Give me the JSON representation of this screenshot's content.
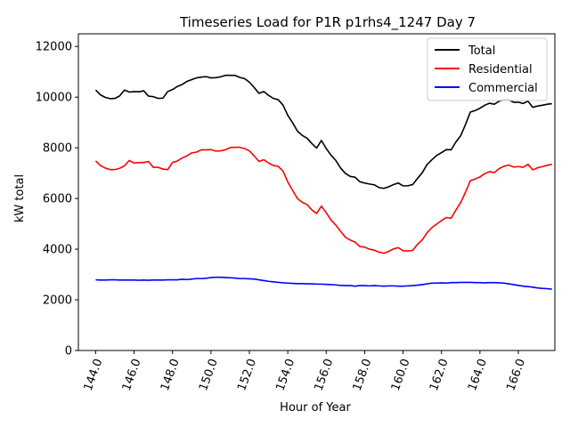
{
  "chart_data": {
    "type": "line",
    "title": "Timeseries Load for P1R p1rhs4_1247  Day 7",
    "xlabel": "Hour of Year",
    "ylabel": "kW total",
    "xlim": [
      143.1,
      167.9
    ],
    "ylim": [
      0,
      12500
    ],
    "xticks": [
      144,
      146,
      148,
      150,
      152,
      154,
      156,
      158,
      160,
      162,
      164,
      166
    ],
    "xtick_labels": [
      "144.0",
      "146.0",
      "148.0",
      "150.0",
      "152.0",
      "154.0",
      "156.0",
      "158.0",
      "160.0",
      "162.0",
      "164.0",
      "166.0"
    ],
    "yticks": [
      0,
      2000,
      4000,
      6000,
      8000,
      10000,
      12000
    ],
    "ytick_labels": [
      "0",
      "2000",
      "4000",
      "6000",
      "8000",
      "10000",
      "12000"
    ],
    "grid": false,
    "legend_position": "top-right",
    "x": [
      144.0,
      144.25,
      144.5,
      144.75,
      145.0,
      145.25,
      145.5,
      145.75,
      146.0,
      146.25,
      146.5,
      146.75,
      147.0,
      147.25,
      147.5,
      147.75,
      148.0,
      148.25,
      148.5,
      148.75,
      149.0,
      149.25,
      149.5,
      149.75,
      150.0,
      150.25,
      150.5,
      150.75,
      151.0,
      151.25,
      151.5,
      151.75,
      152.0,
      152.25,
      152.5,
      152.75,
      153.0,
      153.25,
      153.5,
      153.75,
      154.0,
      154.25,
      154.5,
      154.75,
      155.0,
      155.25,
      155.5,
      155.75,
      156.0,
      156.25,
      156.5,
      156.75,
      157.0,
      157.25,
      157.5,
      157.75,
      158.0,
      158.25,
      158.5,
      158.75,
      159.0,
      159.25,
      159.5,
      159.75,
      160.0,
      160.25,
      160.5,
      160.75,
      161.0,
      161.25,
      161.5,
      161.75,
      162.0,
      162.25,
      162.5,
      162.75,
      163.0,
      163.25,
      163.5,
      163.75,
      164.0,
      164.25,
      164.5,
      164.75,
      165.0,
      165.25,
      165.5,
      165.75,
      166.0,
      166.25,
      166.5,
      166.75,
      167.0,
      167.25,
      167.5,
      167.75
    ],
    "series": [
      {
        "name": "Total",
        "color": "#000000",
        "values": [
          10280,
          10090,
          9990,
          9940,
          9950,
          10050,
          10280,
          10200,
          10220,
          10210,
          10250,
          10040,
          10020,
          9950,
          9960,
          10220,
          10300,
          10420,
          10500,
          10620,
          10690,
          10760,
          10790,
          10810,
          10760,
          10770,
          10800,
          10860,
          10860,
          10860,
          10780,
          10730,
          10590,
          10380,
          10150,
          10220,
          10070,
          9950,
          9900,
          9690,
          9280,
          8990,
          8660,
          8490,
          8380,
          8170,
          7990,
          8290,
          7970,
          7710,
          7500,
          7200,
          6990,
          6870,
          6840,
          6660,
          6610,
          6570,
          6540,
          6430,
          6400,
          6460,
          6550,
          6610,
          6500,
          6500,
          6550,
          6790,
          7020,
          7340,
          7530,
          7700,
          7810,
          7930,
          7920,
          8230,
          8480,
          8920,
          9410,
          9470,
          9560,
          9680,
          9760,
          9720,
          9840,
          9900,
          9890,
          9800,
          9800,
          9750,
          9840,
          9600,
          9650,
          9680,
          9720,
          9740
        ]
      },
      {
        "name": "Residential",
        "color": "#ff0000",
        "values": [
          7480,
          7300,
          7200,
          7140,
          7140,
          7190,
          7290,
          7500,
          7400,
          7420,
          7420,
          7460,
          7230,
          7230,
          7160,
          7140,
          7420,
          7480,
          7600,
          7680,
          7800,
          7830,
          7920,
          7920,
          7930,
          7870,
          7880,
          7920,
          8010,
          8020,
          8020,
          7970,
          7880,
          7680,
          7460,
          7530,
          7400,
          7300,
          7270,
          7080,
          6650,
          6320,
          6000,
          5850,
          5760,
          5550,
          5410,
          5700,
          5440,
          5150,
          4950,
          4700,
          4470,
          4360,
          4280,
          4100,
          4080,
          4000,
          3960,
          3880,
          3840,
          3910,
          4010,
          4060,
          3940,
          3930,
          3950,
          4190,
          4370,
          4650,
          4850,
          4990,
          5130,
          5250,
          5220,
          5540,
          5840,
          6250,
          6700,
          6770,
          6850,
          6980,
          7060,
          7020,
          7180,
          7270,
          7320,
          7240,
          7260,
          7230,
          7350,
          7130,
          7210,
          7260,
          7310,
          7350
        ]
      },
      {
        "name": "Commercial",
        "color": "#0000ff",
        "values": [
          2790,
          2780,
          2780,
          2790,
          2790,
          2780,
          2780,
          2780,
          2780,
          2770,
          2780,
          2770,
          2780,
          2780,
          2780,
          2790,
          2790,
          2790,
          2810,
          2800,
          2820,
          2840,
          2840,
          2850,
          2880,
          2890,
          2890,
          2880,
          2870,
          2860,
          2840,
          2840,
          2830,
          2820,
          2790,
          2760,
          2730,
          2710,
          2690,
          2670,
          2660,
          2650,
          2640,
          2640,
          2630,
          2630,
          2620,
          2620,
          2610,
          2600,
          2590,
          2570,
          2560,
          2560,
          2540,
          2560,
          2560,
          2550,
          2560,
          2550,
          2540,
          2550,
          2550,
          2540,
          2540,
          2550,
          2560,
          2580,
          2600,
          2630,
          2660,
          2660,
          2670,
          2660,
          2680,
          2680,
          2690,
          2690,
          2690,
          2680,
          2680,
          2670,
          2680,
          2680,
          2670,
          2660,
          2630,
          2600,
          2570,
          2540,
          2520,
          2500,
          2470,
          2450,
          2440,
          2420
        ]
      }
    ]
  }
}
